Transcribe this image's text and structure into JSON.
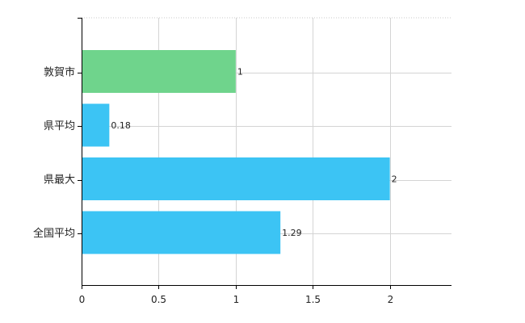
{
  "chart_data": {
    "type": "bar",
    "orientation": "horizontal",
    "categories": [
      "敦賀市",
      "県平均",
      "県最大",
      "全国平均"
    ],
    "values": [
      1,
      0.18,
      2,
      1.29
    ],
    "value_labels": [
      "1",
      "0.18",
      "2",
      "1.29"
    ],
    "bar_colors": [
      "#6fd48c",
      "#3cc4f4",
      "#3cc4f4",
      "#3cc4f4"
    ],
    "xlim": [
      0,
      2.4
    ],
    "xticks": [
      0,
      0.5,
      1,
      1.5,
      2
    ],
    "xtick_labels": [
      "0",
      "0.5",
      "1",
      "1.5",
      "2"
    ],
    "grid": true,
    "title": "",
    "xlabel": "",
    "ylabel": ""
  }
}
